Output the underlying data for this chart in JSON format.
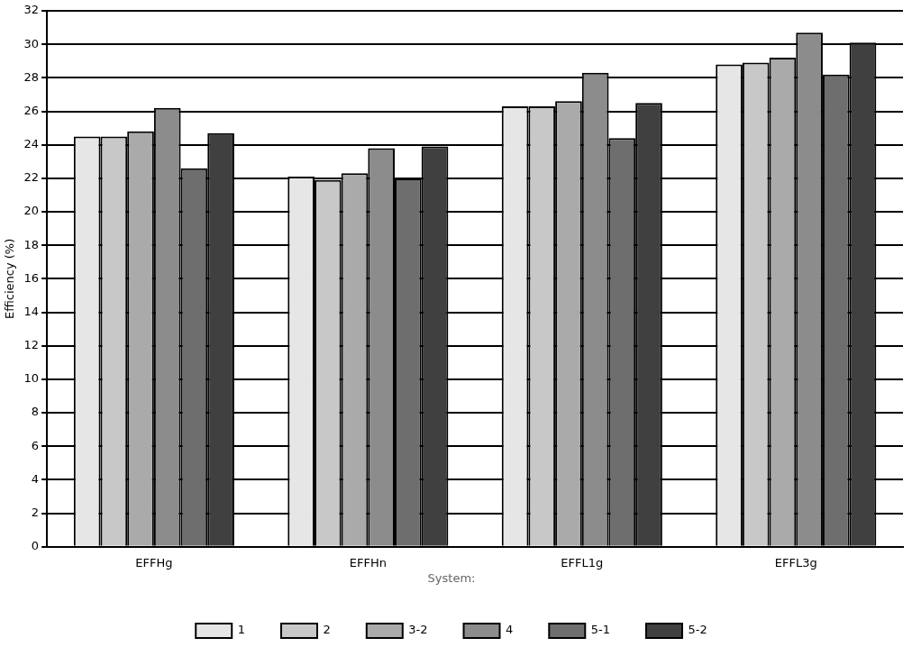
{
  "chart_data": {
    "type": "bar",
    "ylabel": "Efficiency (%)",
    "legend_title": "System:",
    "categories": [
      "EFFHg",
      "EFFHn",
      "EFFL1g",
      "EFFL3g"
    ],
    "series": [
      {
        "name": "1",
        "color": "#e6e6e6",
        "values": [
          24.5,
          22.1,
          26.3,
          28.8
        ]
      },
      {
        "name": "2",
        "color": "#c8c8c8",
        "values": [
          24.5,
          21.9,
          26.3,
          28.9
        ]
      },
      {
        "name": "3-2",
        "color": "#aaaaaa",
        "values": [
          24.8,
          22.3,
          26.6,
          29.2
        ]
      },
      {
        "name": "4",
        "color": "#8c8c8c",
        "values": [
          26.2,
          23.8,
          28.3,
          30.7
        ]
      },
      {
        "name": "5-1",
        "color": "#6e6e6e",
        "values": [
          22.6,
          22.0,
          24.4,
          28.2
        ]
      },
      {
        "name": "5-2",
        "color": "#404040",
        "values": [
          24.7,
          23.9,
          26.5,
          30.1
        ]
      }
    ],
    "ylim": [
      0,
      32
    ],
    "yticks": [
      0,
      2,
      4,
      6,
      8,
      10,
      12,
      14,
      16,
      18,
      20,
      22,
      24,
      26,
      28,
      30,
      32
    ],
    "grid": "y",
    "legend": "bottom"
  }
}
